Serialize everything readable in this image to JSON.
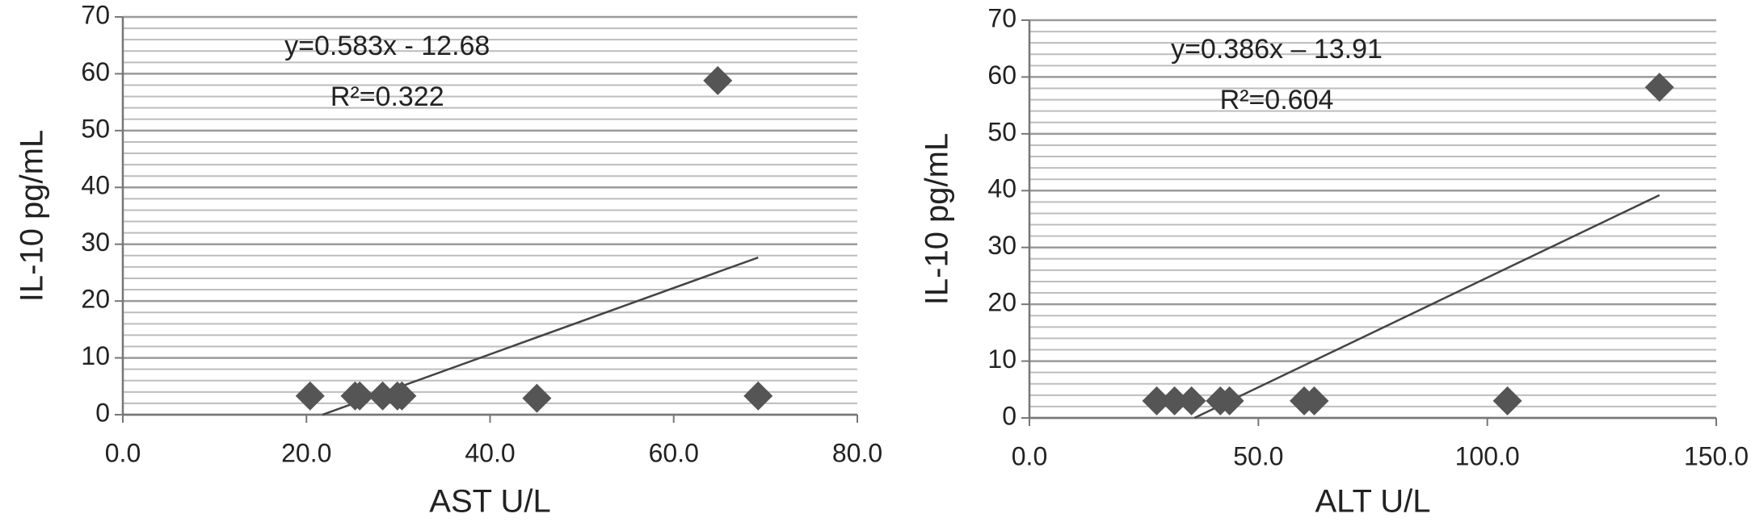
{
  "chart_data": [
    {
      "type": "scatter",
      "xlabel": "AST U/L",
      "ylabel": "IL-10 pg/mL",
      "color": "#555555",
      "grid": true,
      "x": [
        20.4,
        25.3,
        25.8,
        28.3,
        29.9,
        30.4,
        45.1,
        64.8,
        69.2
      ],
      "values": [
        3.3,
        3.3,
        3.3,
        3.3,
        3.3,
        3.3,
        2.9,
        58.8,
        3.3
      ],
      "xlim": [
        0,
        80
      ],
      "xticks": [
        {
          "value": 0,
          "label": "0.0"
        },
        {
          "value": 20,
          "label": "20.0"
        },
        {
          "value": 40,
          "label": "40.0"
        },
        {
          "value": 60,
          "label": "60.0"
        },
        {
          "value": 80,
          "label": "80.0"
        }
      ],
      "ylim": [
        0,
        70
      ],
      "yticks": [
        0,
        10,
        20,
        30,
        40,
        50,
        60,
        70
      ],
      "trendline": {
        "slope": 0.583,
        "intercept": -12.68,
        "label": "y=0.583x - 12.68",
        "r2_label": "R²=0.322"
      }
    },
    {
      "type": "scatter",
      "xlabel": "ALT U/L",
      "ylabel": "IL-10 pg/mL",
      "color": "#555555",
      "grid": true,
      "x": [
        27.8,
        31.7,
        35.4,
        41.7,
        43.7,
        60.0,
        62.2,
        104.4,
        137.6
      ],
      "values": [
        3.0,
        3.0,
        3.0,
        3.0,
        3.0,
        3.0,
        3.0,
        3.0,
        58.2
      ],
      "xlim": [
        0,
        150
      ],
      "xticks": [
        {
          "value": 0,
          "label": "0.0"
        },
        {
          "value": 50,
          "label": "50.0"
        },
        {
          "value": 100,
          "label": "100.0"
        },
        {
          "value": 150,
          "label": "150.0"
        }
      ],
      "ylim": [
        0,
        70
      ],
      "yticks": [
        0,
        10,
        20,
        30,
        40,
        50,
        60,
        70
      ],
      "trendline": {
        "slope": 0.386,
        "intercept": -13.91,
        "label": "y=0.386x – 13.91",
        "r2_label": "R²=0.604"
      }
    }
  ]
}
